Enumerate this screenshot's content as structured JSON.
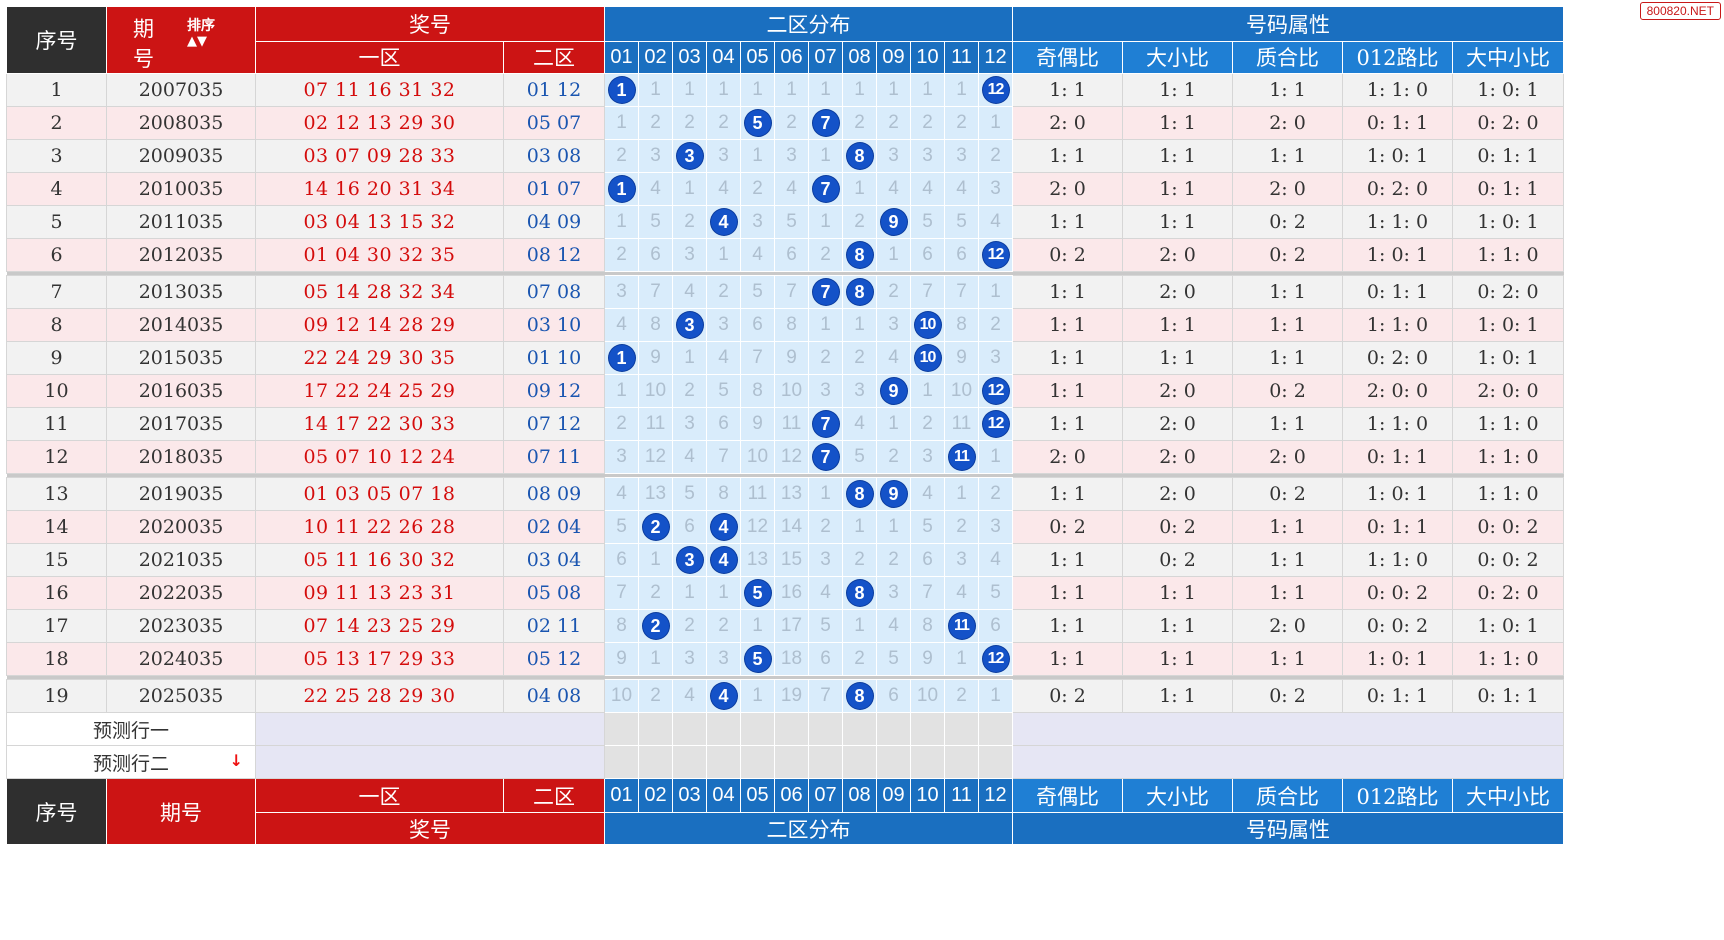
{
  "watermark": "800820.NET",
  "header": {
    "seq": "序号",
    "period_top": "期",
    "period_bottom": "号",
    "sort_label": "排序",
    "prize": "奖号",
    "zone1": "一区",
    "zone2": "二区",
    "dist": "二区分布",
    "attr": "号码属性",
    "dist_numbers": [
      "01",
      "02",
      "03",
      "04",
      "05",
      "06",
      "07",
      "08",
      "09",
      "10",
      "11",
      "12"
    ],
    "attr_cols": [
      "奇偶比",
      "大小比",
      "质合比",
      "012路比",
      "大中小比"
    ]
  },
  "footer": {
    "seq": "序号",
    "period": "期号",
    "zone1": "一区",
    "zone2": "二区",
    "prize": "奖号",
    "dist": "二区分布",
    "attr": "号码属性"
  },
  "predict": [
    "预测行一",
    "预测行二"
  ],
  "rows": [
    {
      "seq": "1",
      "period": "2007035",
      "z1": "07 11 16 31 32",
      "z2": "01 12",
      "dist": [
        "1",
        "1",
        "1",
        "1",
        "1",
        "1",
        "1",
        "1",
        "1",
        "1",
        "1",
        "12"
      ],
      "hits": [
        0,
        11
      ],
      "attr": [
        "1: 1",
        "1: 1",
        "1: 1",
        "1: 1: 0",
        "1: 0: 1"
      ]
    },
    {
      "seq": "2",
      "period": "2008035",
      "z1": "02 12 13 29 30",
      "z2": "05 07",
      "dist": [
        "1",
        "2",
        "2",
        "2",
        "5",
        "2",
        "7",
        "2",
        "2",
        "2",
        "2",
        "1"
      ],
      "hits": [
        4,
        6
      ],
      "attr": [
        "2: 0",
        "1: 1",
        "2: 0",
        "0: 1: 1",
        "0: 2: 0"
      ]
    },
    {
      "seq": "3",
      "period": "2009035",
      "z1": "03 07 09 28 33",
      "z2": "03 08",
      "dist": [
        "2",
        "3",
        "3",
        "3",
        "1",
        "3",
        "1",
        "8",
        "3",
        "3",
        "3",
        "2"
      ],
      "hits": [
        2,
        7
      ],
      "attr": [
        "1: 1",
        "1: 1",
        "1: 1",
        "1: 0: 1",
        "0: 1: 1"
      ]
    },
    {
      "seq": "4",
      "period": "2010035",
      "z1": "14 16 20 31 34",
      "z2": "01 07",
      "dist": [
        "1",
        "4",
        "1",
        "4",
        "2",
        "4",
        "7",
        "1",
        "4",
        "4",
        "4",
        "3"
      ],
      "hits": [
        0,
        6
      ],
      "attr": [
        "2: 0",
        "1: 1",
        "2: 0",
        "0: 2: 0",
        "0: 1: 1"
      ]
    },
    {
      "seq": "5",
      "period": "2011035",
      "z1": "03 04 13 15 32",
      "z2": "04 09",
      "dist": [
        "1",
        "5",
        "2",
        "4",
        "3",
        "5",
        "1",
        "2",
        "9",
        "5",
        "5",
        "4"
      ],
      "hits": [
        3,
        8
      ],
      "attr": [
        "1: 1",
        "1: 1",
        "0: 2",
        "1: 1: 0",
        "1: 0: 1"
      ]
    },
    {
      "seq": "6",
      "period": "2012035",
      "z1": "01 04 30 32 35",
      "z2": "08 12",
      "dist": [
        "2",
        "6",
        "3",
        "1",
        "4",
        "6",
        "2",
        "8",
        "1",
        "6",
        "6",
        "12"
      ],
      "hits": [
        7,
        11
      ],
      "attr": [
        "0: 2",
        "2: 0",
        "0: 2",
        "1: 0: 1",
        "1: 1: 0"
      ]
    },
    {
      "seq": "7",
      "period": "2013035",
      "z1": "05 14 28 32 34",
      "z2": "07 08",
      "dist": [
        "3",
        "7",
        "4",
        "2",
        "5",
        "7",
        "7",
        "8",
        "2",
        "7",
        "7",
        "1"
      ],
      "hits": [
        6,
        7
      ],
      "attr": [
        "1: 1",
        "2: 0",
        "1: 1",
        "0: 1: 1",
        "0: 2: 0"
      ]
    },
    {
      "seq": "8",
      "period": "2014035",
      "z1": "09 12 14 28 29",
      "z2": "03 10",
      "dist": [
        "4",
        "8",
        "3",
        "3",
        "6",
        "8",
        "1",
        "1",
        "3",
        "10",
        "8",
        "2"
      ],
      "hits": [
        2,
        9
      ],
      "attr": [
        "1: 1",
        "1: 1",
        "1: 1",
        "1: 1: 0",
        "1: 0: 1"
      ]
    },
    {
      "seq": "9",
      "period": "2015035",
      "z1": "22 24 29 30 35",
      "z2": "01 10",
      "dist": [
        "1",
        "9",
        "1",
        "4",
        "7",
        "9",
        "2",
        "2",
        "4",
        "10",
        "9",
        "3"
      ],
      "hits": [
        0,
        9
      ],
      "attr": [
        "1: 1",
        "1: 1",
        "1: 1",
        "0: 2: 0",
        "1: 0: 1"
      ]
    },
    {
      "seq": "10",
      "period": "2016035",
      "z1": "17 22 24 25 29",
      "z2": "09 12",
      "dist": [
        "1",
        "10",
        "2",
        "5",
        "8",
        "10",
        "3",
        "3",
        "9",
        "1",
        "10",
        "12"
      ],
      "hits": [
        8,
        11
      ],
      "attr": [
        "1: 1",
        "2: 0",
        "0: 2",
        "2: 0: 0",
        "2: 0: 0"
      ]
    },
    {
      "seq": "11",
      "period": "2017035",
      "z1": "14 17 22 30 33",
      "z2": "07 12",
      "dist": [
        "2",
        "11",
        "3",
        "6",
        "9",
        "11",
        "7",
        "4",
        "1",
        "2",
        "11",
        "12"
      ],
      "hits": [
        6,
        11
      ],
      "attr": [
        "1: 1",
        "2: 0",
        "1: 1",
        "1: 1: 0",
        "1: 1: 0"
      ]
    },
    {
      "seq": "12",
      "period": "2018035",
      "z1": "05 07 10 12 24",
      "z2": "07 11",
      "dist": [
        "3",
        "12",
        "4",
        "7",
        "10",
        "12",
        "7",
        "5",
        "2",
        "3",
        "11",
        "1"
      ],
      "hits": [
        6,
        10
      ],
      "attr": [
        "2: 0",
        "2: 0",
        "2: 0",
        "0: 1: 1",
        "1: 1: 0"
      ]
    },
    {
      "seq": "13",
      "period": "2019035",
      "z1": "01 03 05 07 18",
      "z2": "08 09",
      "dist": [
        "4",
        "13",
        "5",
        "8",
        "11",
        "13",
        "1",
        "8",
        "9",
        "4",
        "1",
        "2"
      ],
      "hits": [
        7,
        8
      ],
      "attr": [
        "1: 1",
        "2: 0",
        "0: 2",
        "1: 0: 1",
        "1: 1: 0"
      ]
    },
    {
      "seq": "14",
      "period": "2020035",
      "z1": "10 11 22 26 28",
      "z2": "02 04",
      "dist": [
        "5",
        "2",
        "6",
        "4",
        "12",
        "14",
        "2",
        "1",
        "1",
        "5",
        "2",
        "3"
      ],
      "hits": [
        1,
        3
      ],
      "attr": [
        "0: 2",
        "0: 2",
        "1: 1",
        "0: 1: 1",
        "0: 0: 2"
      ]
    },
    {
      "seq": "15",
      "period": "2021035",
      "z1": "05 11 16 30 32",
      "z2": "03 04",
      "dist": [
        "6",
        "1",
        "3",
        "4",
        "13",
        "15",
        "3",
        "2",
        "2",
        "6",
        "3",
        "4"
      ],
      "hits": [
        2,
        3
      ],
      "attr": [
        "1: 1",
        "0: 2",
        "1: 1",
        "1: 1: 0",
        "0: 0: 2"
      ]
    },
    {
      "seq": "16",
      "period": "2022035",
      "z1": "09 11 13 23 31",
      "z2": "05 08",
      "dist": [
        "7",
        "2",
        "1",
        "1",
        "5",
        "16",
        "4",
        "8",
        "3",
        "7",
        "4",
        "5"
      ],
      "hits": [
        4,
        7
      ],
      "attr": [
        "1: 1",
        "1: 1",
        "1: 1",
        "0: 0: 2",
        "0: 2: 0"
      ]
    },
    {
      "seq": "17",
      "period": "2023035",
      "z1": "07 14 23 25 29",
      "z2": "02 11",
      "dist": [
        "8",
        "2",
        "2",
        "2",
        "1",
        "17",
        "5",
        "1",
        "4",
        "8",
        "11",
        "6"
      ],
      "hits": [
        1,
        10
      ],
      "attr": [
        "1: 1",
        "1: 1",
        "2: 0",
        "0: 0: 2",
        "1: 0: 1"
      ]
    },
    {
      "seq": "18",
      "period": "2024035",
      "z1": "05 13 17 29 33",
      "z2": "05 12",
      "dist": [
        "9",
        "1",
        "3",
        "3",
        "5",
        "18",
        "6",
        "2",
        "5",
        "9",
        "1",
        "12"
      ],
      "hits": [
        4,
        11
      ],
      "attr": [
        "1: 1",
        "1: 1",
        "1: 1",
        "1: 0: 1",
        "1: 1: 0"
      ]
    },
    {
      "seq": "19",
      "period": "2025035",
      "z1": "22 25 28 29 30",
      "z2": "04 08",
      "dist": [
        "10",
        "2",
        "4",
        "4",
        "1",
        "19",
        "7",
        "8",
        "6",
        "10",
        "2",
        "1"
      ],
      "hits": [
        3,
        7
      ],
      "attr": [
        "0: 2",
        "1: 1",
        "0: 2",
        "0: 1: 1",
        "0: 1: 1"
      ]
    }
  ]
}
